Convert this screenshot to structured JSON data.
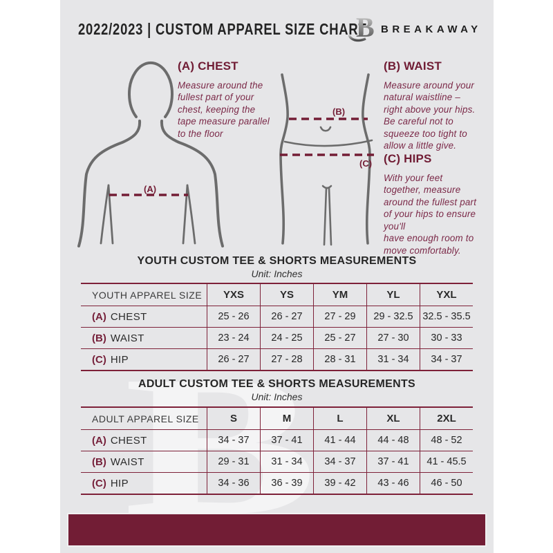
{
  "header": {
    "title": "2022/2023  |  CUSTOM APPAREL SIZE CHART",
    "brand": "BREAKAWAY",
    "logo_letter": "B"
  },
  "colors": {
    "maroon": "#731d35",
    "maroon_text": "#7b2948",
    "page_bg": "#e6e6e8",
    "figure_gray": "#6c6c6c"
  },
  "sections": {
    "chest": {
      "heading": "(A) CHEST",
      "body": "Measure around the\nfullest part of your\nchest, keeping the\ntape measure parallel\nto the floor"
    },
    "waist": {
      "heading": "(B) WAIST",
      "body": "Measure around your\nnatural waistline –\nright above your hips.\nBe careful not to\nsqueeze too tight to\nallow a little give."
    },
    "hips": {
      "heading": "(C) HIPS",
      "body": "With your feet\ntogether, measure\naround the fullest part\nof your hips to ensure\nyou'll\nhave enough room to\nmove comfortably."
    }
  },
  "diagram": {
    "chest_label": "(A)",
    "waist_label": "(B)",
    "hips_label": "(C)"
  },
  "watermark_letter": "B",
  "tables": [
    {
      "title": "YOUTH CUSTOM TEE & SHORTS MEASUREMENTS",
      "unit": "Unit: Inches",
      "header": [
        "YOUTH APPAREL SIZE",
        "YXS",
        "YS",
        "YM",
        "YL",
        "YXL"
      ],
      "rows": [
        {
          "label_prefix": "(A)",
          "label": "CHEST",
          "values": [
            "25 - 26",
            "26 - 27",
            "27 - 29",
            "29 - 32.5",
            "32.5 - 35.5"
          ]
        },
        {
          "label_prefix": "(B)",
          "label": "WAIST",
          "values": [
            "23 - 24",
            "24 - 25",
            "25 - 27",
            "27 - 30",
            "30 - 33"
          ]
        },
        {
          "label_prefix": "(C)",
          "label": "HIP",
          "values": [
            "26 - 27",
            "27 - 28",
            "28 - 31",
            "31 - 34",
            "34 - 37"
          ]
        }
      ]
    },
    {
      "title": "ADULT CUSTOM TEE & SHORTS MEASUREMENTS",
      "unit": "Unit: Inches",
      "header": [
        "ADULT APPAREL SIZE",
        "S",
        "M",
        "L",
        "XL",
        "2XL"
      ],
      "rows": [
        {
          "label_prefix": "(A)",
          "label": "CHEST",
          "values": [
            "34 - 37",
            "37 - 41",
            "41 - 44",
            "44 - 48",
            "48 - 52"
          ]
        },
        {
          "label_prefix": "(B)",
          "label": "WAIST",
          "values": [
            "29 - 31",
            "31 - 34",
            "34 - 37",
            "37 - 41",
            "41 - 45.5"
          ]
        },
        {
          "label_prefix": "(C)",
          "label": "HIP",
          "values": [
            "34 - 36",
            "36 - 39",
            "39 - 42",
            "43 - 46",
            "46 - 50"
          ]
        }
      ]
    }
  ]
}
